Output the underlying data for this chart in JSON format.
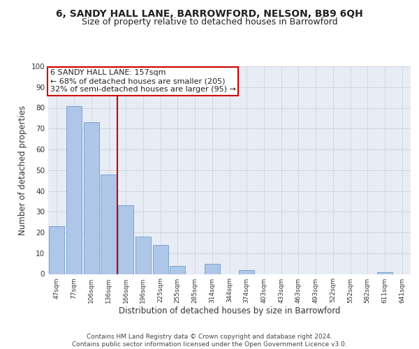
{
  "title": "6, SANDY HALL LANE, BARROWFORD, NELSON, BB9 6QH",
  "subtitle": "Size of property relative to detached houses in Barrowford",
  "xlabel": "Distribution of detached houses by size in Barrowford",
  "ylabel": "Number of detached properties",
  "categories": [
    "47sqm",
    "77sqm",
    "106sqm",
    "136sqm",
    "166sqm",
    "196sqm",
    "225sqm",
    "255sqm",
    "285sqm",
    "314sqm",
    "344sqm",
    "374sqm",
    "403sqm",
    "433sqm",
    "463sqm",
    "493sqm",
    "522sqm",
    "552sqm",
    "582sqm",
    "611sqm",
    "641sqm"
  ],
  "values": [
    23,
    81,
    73,
    48,
    33,
    18,
    14,
    4,
    0,
    5,
    0,
    2,
    0,
    0,
    0,
    0,
    0,
    0,
    0,
    1,
    0
  ],
  "bar_color": "#aec6e8",
  "bar_edge_color": "#5a8fc0",
  "vline_x": 3.5,
  "vline_color": "#cc0000",
  "annotation_text": "6 SANDY HALL LANE: 157sqm\n← 68% of detached houses are smaller (205)\n32% of semi-detached houses are larger (95) →",
  "annotation_box_color": "#ffffff",
  "annotation_box_edge_color": "#cc0000",
  "ylim": [
    0,
    100
  ],
  "yticks": [
    0,
    10,
    20,
    30,
    40,
    50,
    60,
    70,
    80,
    90,
    100
  ],
  "grid_color": "#c8d0dc",
  "bg_color": "#e8edf5",
  "footer": "Contains HM Land Registry data © Crown copyright and database right 2024.\nContains public sector information licensed under the Open Government Licence v3.0.",
  "title_fontsize": 10,
  "subtitle_fontsize": 9,
  "xlabel_fontsize": 8.5,
  "ylabel_fontsize": 8.5,
  "annotation_fontsize": 8,
  "footer_fontsize": 6.5
}
